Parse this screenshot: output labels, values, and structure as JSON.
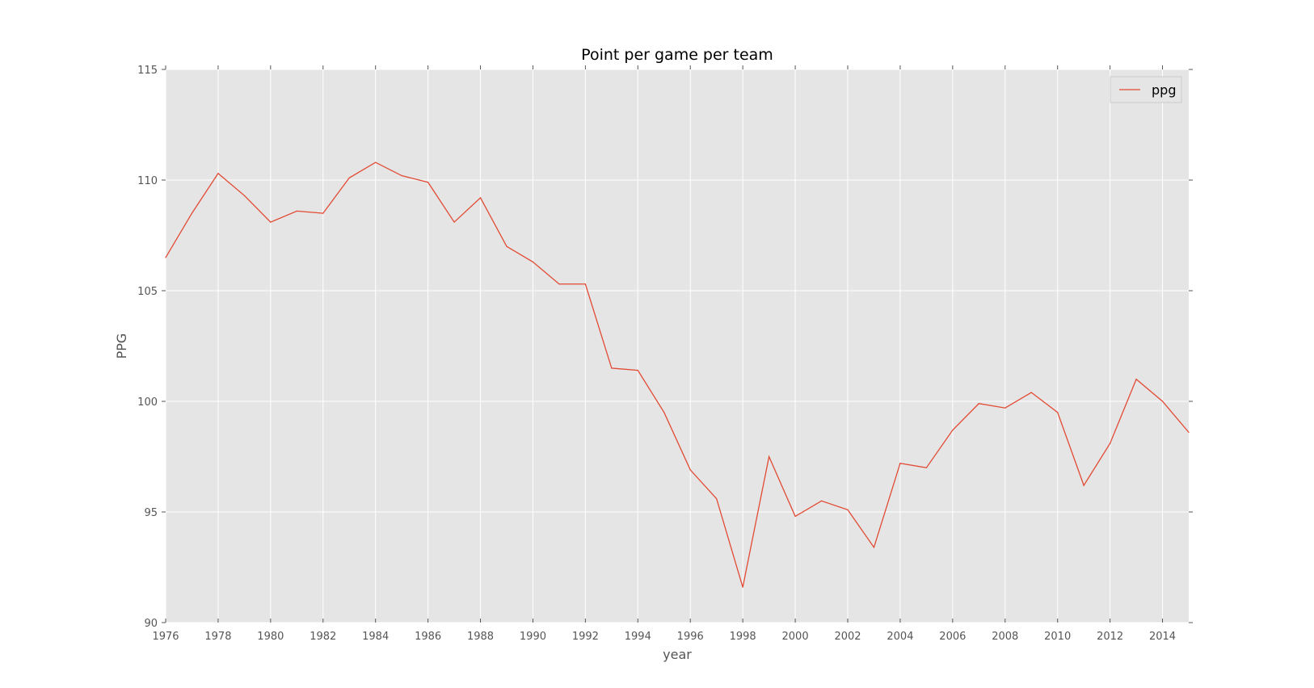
{
  "chart_data": {
    "type": "line",
    "title": "Point per game per team",
    "xlabel": "year",
    "ylabel": "PPG",
    "xlim": [
      1976,
      2015
    ],
    "ylim": [
      90,
      115
    ],
    "xticks": [
      "1976",
      "1978",
      "1980",
      "1982",
      "1984",
      "1986",
      "1988",
      "1990",
      "1992",
      "1994",
      "1996",
      "1998",
      "2000",
      "2002",
      "2004",
      "2006",
      "2008",
      "2010",
      "2012",
      "2014"
    ],
    "xtick_values": [
      1976,
      1978,
      1980,
      1982,
      1984,
      1986,
      1988,
      1990,
      1992,
      1994,
      1996,
      1998,
      2000,
      2002,
      2004,
      2006,
      2008,
      2010,
      2012,
      2014
    ],
    "yticks": [
      "90",
      "95",
      "100",
      "105",
      "110",
      "115"
    ],
    "ytick_values": [
      90,
      95,
      100,
      105,
      110,
      115
    ],
    "grid": true,
    "legend_position": "top-right",
    "x": [
      1976,
      1977,
      1978,
      1979,
      1980,
      1981,
      1982,
      1983,
      1984,
      1985,
      1986,
      1987,
      1988,
      1989,
      1990,
      1991,
      1992,
      1993,
      1994,
      1995,
      1996,
      1997,
      1998,
      1999,
      2000,
      2001,
      2002,
      2003,
      2004,
      2005,
      2006,
      2007,
      2008,
      2009,
      2010,
      2011,
      2012,
      2013,
      2014,
      2015
    ],
    "series": [
      {
        "name": "ppg",
        "color": "#e24a33",
        "values": [
          106.5,
          108.5,
          110.3,
          109.3,
          108.1,
          108.6,
          108.5,
          110.1,
          110.8,
          110.2,
          109.9,
          108.1,
          109.2,
          107.0,
          106.3,
          105.3,
          105.3,
          101.5,
          101.4,
          99.5,
          96.9,
          95.6,
          91.6,
          97.5,
          94.8,
          95.5,
          95.1,
          93.4,
          97.2,
          97.0,
          98.7,
          99.9,
          99.7,
          100.4,
          99.5,
          96.2,
          98.1,
          101.0,
          100.0,
          98.6
        ]
      }
    ]
  }
}
